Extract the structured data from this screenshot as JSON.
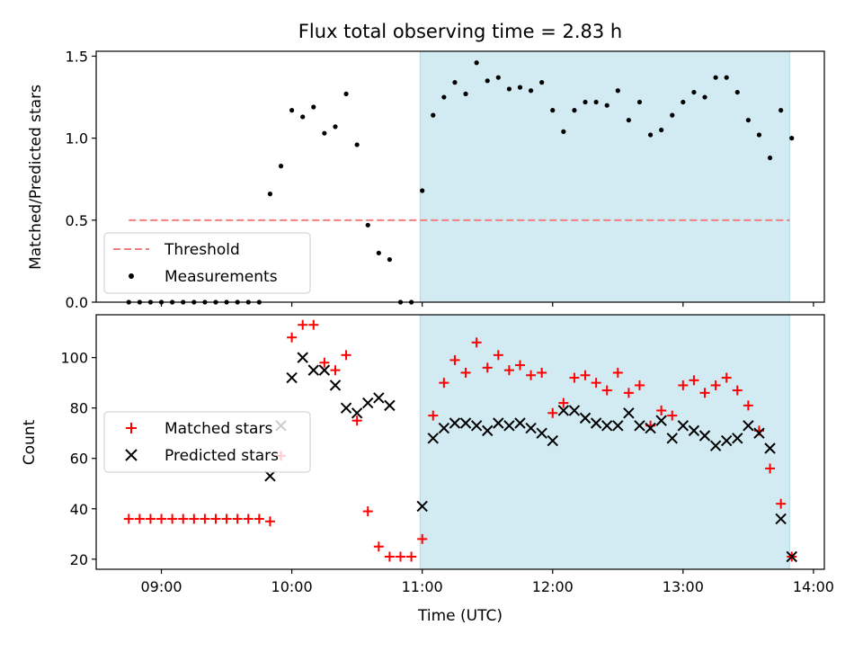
{
  "title": "Flux total observing time = 2.83 h",
  "colors": {
    "shade": "#add8e6",
    "threshold": "#f08080",
    "measurement": "#000000",
    "matched": "#ff0000",
    "predicted": "#000000"
  },
  "chart_data": [
    {
      "type": "scatter",
      "ylabel": "Matched/Predicted stars",
      "xlim": [
        "08:30",
        "14:05"
      ],
      "ylim": [
        0,
        1.53
      ],
      "x_ticks": [
        "09:00",
        "10:00",
        "11:00",
        "12:00",
        "13:00",
        "14:00"
      ],
      "y_ticks": [
        "0.0",
        "0.5",
        "1.0",
        "1.5"
      ],
      "shaded_span": [
        "10:59",
        "13:49"
      ],
      "threshold": {
        "name": "Threshold",
        "value": 0.5,
        "x_range": [
          "08:45",
          "13:49"
        ],
        "style": "dashed"
      },
      "legend_position": "lower-left",
      "series": [
        {
          "name": "Measurements",
          "marker": "dot",
          "points": [
            [
              "08:45",
              0
            ],
            [
              "08:50",
              0
            ],
            [
              "08:55",
              0
            ],
            [
              "09:00",
              0
            ],
            [
              "09:05",
              0
            ],
            [
              "09:10",
              0
            ],
            [
              "09:15",
              0
            ],
            [
              "09:20",
              0
            ],
            [
              "09:25",
              0
            ],
            [
              "09:30",
              0
            ],
            [
              "09:35",
              0
            ],
            [
              "09:40",
              0
            ],
            [
              "09:45",
              0
            ],
            [
              "09:50",
              0.66
            ],
            [
              "09:55",
              0.83
            ],
            [
              "10:00",
              1.17
            ],
            [
              "10:05",
              1.13
            ],
            [
              "10:10",
              1.19
            ],
            [
              "10:15",
              1.03
            ],
            [
              "10:20",
              1.07
            ],
            [
              "10:25",
              1.27
            ],
            [
              "10:30",
              0.96
            ],
            [
              "10:35",
              0.47
            ],
            [
              "10:40",
              0.3
            ],
            [
              "10:45",
              0.26
            ],
            [
              "10:50",
              0
            ],
            [
              "10:55",
              0
            ],
            [
              "11:00",
              0.68
            ],
            [
              "11:05",
              1.14
            ],
            [
              "11:10",
              1.25
            ],
            [
              "11:15",
              1.34
            ],
            [
              "11:20",
              1.27
            ],
            [
              "11:25",
              1.46
            ],
            [
              "11:30",
              1.35
            ],
            [
              "11:35",
              1.37
            ],
            [
              "11:40",
              1.3
            ],
            [
              "11:45",
              1.31
            ],
            [
              "11:50",
              1.29
            ],
            [
              "11:55",
              1.34
            ],
            [
              "12:00",
              1.17
            ],
            [
              "12:05",
              1.04
            ],
            [
              "12:10",
              1.17
            ],
            [
              "12:15",
              1.22
            ],
            [
              "12:20",
              1.22
            ],
            [
              "12:25",
              1.2
            ],
            [
              "12:30",
              1.29
            ],
            [
              "12:35",
              1.11
            ],
            [
              "12:40",
              1.22
            ],
            [
              "12:45",
              1.02
            ],
            [
              "12:50",
              1.05
            ],
            [
              "12:55",
              1.14
            ],
            [
              "13:00",
              1.22
            ],
            [
              "13:05",
              1.28
            ],
            [
              "13:10",
              1.25
            ],
            [
              "13:15",
              1.37
            ],
            [
              "13:20",
              1.37
            ],
            [
              "13:25",
              1.28
            ],
            [
              "13:30",
              1.11
            ],
            [
              "13:35",
              1.02
            ],
            [
              "13:40",
              0.88
            ],
            [
              "13:45",
              1.17
            ],
            [
              "13:50",
              1.0
            ]
          ]
        }
      ]
    },
    {
      "type": "scatter",
      "xlabel": "Time (UTC)",
      "ylabel": "Count",
      "xlim": [
        "08:30",
        "14:05"
      ],
      "ylim": [
        16,
        117
      ],
      "x_ticks": [
        "09:00",
        "10:00",
        "11:00",
        "12:00",
        "13:00",
        "14:00"
      ],
      "y_ticks": [
        "20",
        "40",
        "60",
        "80",
        "100"
      ],
      "shaded_span": [
        "10:59",
        "13:49"
      ],
      "legend_position": "center-left",
      "series": [
        {
          "name": "Matched stars",
          "marker": "plus",
          "points": [
            [
              "08:45",
              36
            ],
            [
              "08:50",
              36
            ],
            [
              "08:55",
              36
            ],
            [
              "09:00",
              36
            ],
            [
              "09:05",
              36
            ],
            [
              "09:10",
              36
            ],
            [
              "09:15",
              36
            ],
            [
              "09:20",
              36
            ],
            [
              "09:25",
              36
            ],
            [
              "09:30",
              36
            ],
            [
              "09:35",
              36
            ],
            [
              "09:40",
              36
            ],
            [
              "09:45",
              36
            ],
            [
              "09:50",
              35
            ],
            [
              "09:55",
              61
            ],
            [
              "10:00",
              108
            ],
            [
              "10:05",
              113
            ],
            [
              "10:10",
              113
            ],
            [
              "10:15",
              98
            ],
            [
              "10:20",
              95
            ],
            [
              "10:25",
              101
            ],
            [
              "10:30",
              75
            ],
            [
              "10:35",
              39
            ],
            [
              "10:40",
              25
            ],
            [
              "10:45",
              21
            ],
            [
              "10:50",
              21
            ],
            [
              "10:55",
              21
            ],
            [
              "11:00",
              28
            ],
            [
              "11:05",
              77
            ],
            [
              "11:10",
              90
            ],
            [
              "11:15",
              99
            ],
            [
              "11:20",
              94
            ],
            [
              "11:25",
              106
            ],
            [
              "11:30",
              96
            ],
            [
              "11:35",
              101
            ],
            [
              "11:40",
              95
            ],
            [
              "11:45",
              97
            ],
            [
              "11:50",
              93
            ],
            [
              "11:55",
              94
            ],
            [
              "12:00",
              78
            ],
            [
              "12:05",
              82
            ],
            [
              "12:10",
              92
            ],
            [
              "12:15",
              93
            ],
            [
              "12:20",
              90
            ],
            [
              "12:25",
              87
            ],
            [
              "12:30",
              94
            ],
            [
              "12:35",
              86
            ],
            [
              "12:40",
              89
            ],
            [
              "12:45",
              73
            ],
            [
              "12:50",
              79
            ],
            [
              "12:55",
              77
            ],
            [
              "13:00",
              89
            ],
            [
              "13:05",
              91
            ],
            [
              "13:10",
              86
            ],
            [
              "13:15",
              89
            ],
            [
              "13:20",
              92
            ],
            [
              "13:25",
              87
            ],
            [
              "13:30",
              81
            ],
            [
              "13:35",
              71
            ],
            [
              "13:40",
              56
            ],
            [
              "13:45",
              42
            ],
            [
              "13:50",
              21
            ]
          ]
        },
        {
          "name": "Predicted stars",
          "marker": "cross",
          "points": [
            [
              "09:50",
              53
            ],
            [
              "09:55",
              73
            ],
            [
              "10:00",
              92
            ],
            [
              "10:05",
              100
            ],
            [
              "10:10",
              95
            ],
            [
              "10:15",
              95
            ],
            [
              "10:20",
              89
            ],
            [
              "10:25",
              80
            ],
            [
              "10:30",
              78
            ],
            [
              "10:35",
              82
            ],
            [
              "10:40",
              84
            ],
            [
              "10:45",
              81
            ],
            [
              "11:00",
              41
            ],
            [
              "11:05",
              68
            ],
            [
              "11:10",
              72
            ],
            [
              "11:15",
              74
            ],
            [
              "11:20",
              74
            ],
            [
              "11:25",
              73
            ],
            [
              "11:30",
              71
            ],
            [
              "11:35",
              74
            ],
            [
              "11:40",
              73
            ],
            [
              "11:45",
              74
            ],
            [
              "11:50",
              72
            ],
            [
              "11:55",
              70
            ],
            [
              "12:00",
              67
            ],
            [
              "12:05",
              79
            ],
            [
              "12:10",
              79
            ],
            [
              "12:15",
              76
            ],
            [
              "12:20",
              74
            ],
            [
              "12:25",
              73
            ],
            [
              "12:30",
              73
            ],
            [
              "12:35",
              78
            ],
            [
              "12:40",
              73
            ],
            [
              "12:45",
              72
            ],
            [
              "12:50",
              75
            ],
            [
              "12:55",
              68
            ],
            [
              "13:00",
              73
            ],
            [
              "13:05",
              71
            ],
            [
              "13:10",
              69
            ],
            [
              "13:15",
              65
            ],
            [
              "13:20",
              67
            ],
            [
              "13:25",
              68
            ],
            [
              "13:30",
              73
            ],
            [
              "13:35",
              70
            ],
            [
              "13:40",
              64
            ],
            [
              "13:45",
              36
            ],
            [
              "13:50",
              21
            ]
          ]
        }
      ]
    }
  ]
}
